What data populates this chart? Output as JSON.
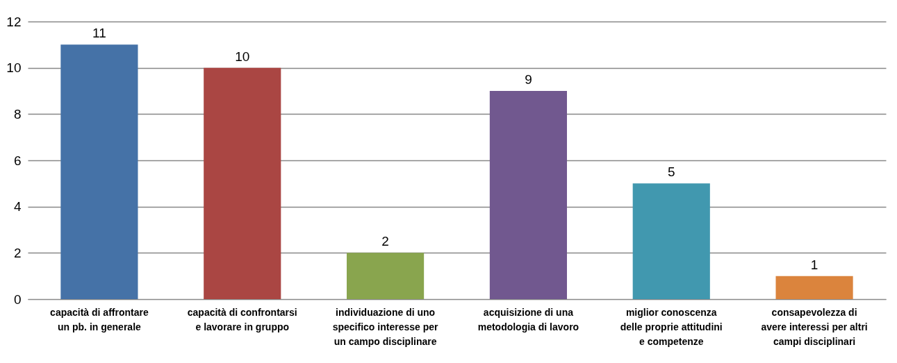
{
  "chart_data": {
    "type": "bar",
    "categories": [
      "capacità di affrontare\nun pb. in generale",
      "capacità di confrontarsi\ne lavorare in gruppo",
      "individuazione di uno\nspecifico interesse per\nun campo disciplinare",
      "acquisizione di una\nmetodologia di lavoro",
      "miglior conoscenza\ndelle proprie attitudini\ne competenze",
      "consapevolezza di\navere interessi per altri\ncampi disciplinari"
    ],
    "values": [
      11,
      10,
      2,
      9,
      5,
      1
    ],
    "colors": [
      "#4572a7",
      "#aa4643",
      "#89a54e",
      "#71588f",
      "#4198af",
      "#db843d"
    ],
    "ylim": [
      0,
      12
    ],
    "yticks": [
      0,
      2,
      4,
      6,
      8,
      10,
      12
    ],
    "grid": "y",
    "data_labels": true
  }
}
